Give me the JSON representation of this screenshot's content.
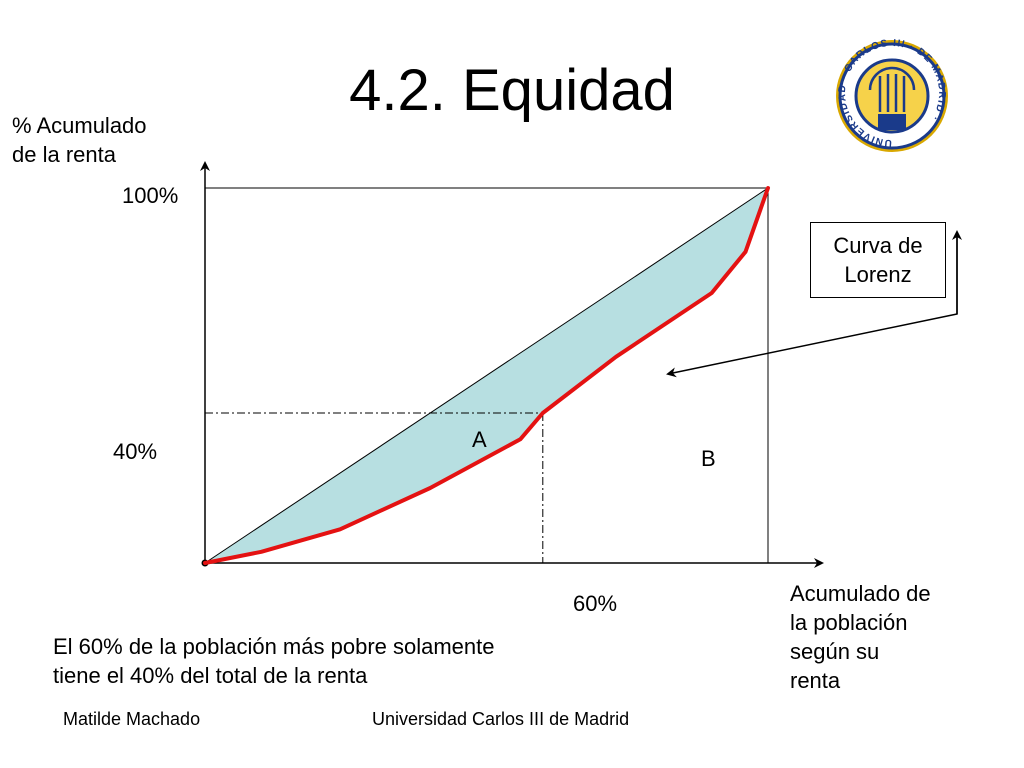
{
  "slide": {
    "title": "4.2. Equidad",
    "footer_left": "Matilde Machado",
    "footer_center": "Universidad Carlos III de Madrid",
    "caption_line1": "El 60% de la población más pobre solamente",
    "caption_line2": "tiene el 40% del total de la renta"
  },
  "logo": {
    "ring_text": "UNIVERSIDAD · CARLOS III · DE MADRID ·",
    "colors": {
      "ring": "#1a3a8a",
      "gold": "#d9a800",
      "inner": "#f6d24a"
    }
  },
  "diagram": {
    "y_axis_label_line1": "% Acumulado",
    "y_axis_label_line2": "de la renta",
    "x_axis_label_lines": [
      "Acumulado de",
      "la población",
      "según su",
      "renta"
    ],
    "tick_y_top": "100%",
    "tick_y_mid": "40%",
    "tick_x_mid": "60%",
    "area_a_label": "A",
    "area_b_label": "B",
    "callout_label_line1": "Curva de",
    "callout_label_line2": "Lorenz",
    "colors": {
      "curve": "#e41212",
      "area_a": "#b7dfe1",
      "lines": "#000000"
    }
  },
  "chart_data": {
    "type": "line",
    "series": [
      {
        "values": [
          [
            0,
            0
          ],
          [
            1,
            1
          ]
        ]
      },
      {
        "values": [
          [
            0,
            0
          ],
          [
            0.1,
            0.03
          ],
          [
            0.24,
            0.09
          ],
          [
            0.4,
            0.2
          ],
          [
            0.56,
            0.33
          ],
          [
            0.6,
            0.4
          ],
          [
            0.73,
            0.55
          ],
          [
            0.9,
            0.72
          ],
          [
            0.96,
            0.83
          ],
          [
            1,
            1
          ]
        ]
      }
    ],
    "xlim": [
      0,
      1
    ],
    "ylim": [
      0,
      1
    ],
    "annotations": [
      {
        "x": 0.6,
        "y": 0.4
      }
    ]
  }
}
